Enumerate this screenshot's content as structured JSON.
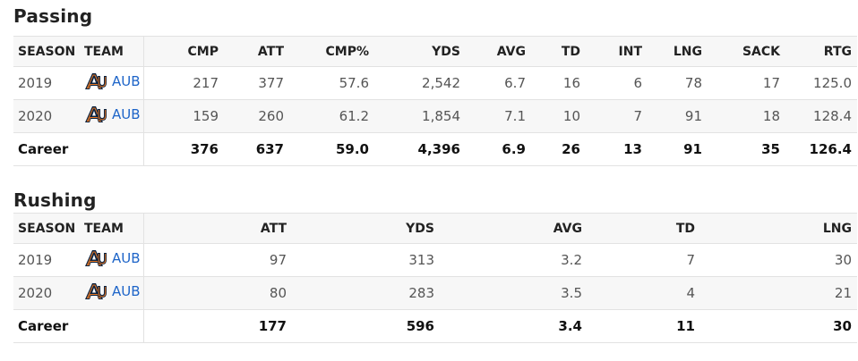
{
  "passing": {
    "title": "Passing",
    "columns": [
      "SEASON",
      "TEAM",
      "CMP",
      "ATT",
      "CMP%",
      "YDS",
      "AVG",
      "TD",
      "INT",
      "LNG",
      "SACK",
      "RTG"
    ],
    "rows": [
      {
        "season": "2019",
        "team": "AUB",
        "cmp": "217",
        "att": "377",
        "cmp_pct": "57.6",
        "yds": "2,542",
        "avg": "6.7",
        "td": "16",
        "int": "6",
        "lng": "78",
        "sack": "17",
        "rtg": "125.0"
      },
      {
        "season": "2020",
        "team": "AUB",
        "cmp": "159",
        "att": "260",
        "cmp_pct": "61.2",
        "yds": "1,854",
        "avg": "7.1",
        "td": "10",
        "int": "7",
        "lng": "91",
        "sack": "18",
        "rtg": "128.4"
      }
    ],
    "career": {
      "label": "Career",
      "cmp": "376",
      "att": "637",
      "cmp_pct": "59.0",
      "yds": "4,396",
      "avg": "6.9",
      "td": "26",
      "int": "13",
      "lng": "91",
      "sack": "35",
      "rtg": "126.4"
    }
  },
  "rushing": {
    "title": "Rushing",
    "columns": [
      "SEASON",
      "TEAM",
      "ATT",
      "YDS",
      "AVG",
      "TD",
      "LNG"
    ],
    "rows": [
      {
        "season": "2019",
        "team": "AUB",
        "att": "97",
        "yds": "313",
        "avg": "3.2",
        "td": "7",
        "lng": "30"
      },
      {
        "season": "2020",
        "team": "AUB",
        "att": "80",
        "yds": "283",
        "avg": "3.5",
        "td": "4",
        "lng": "21"
      }
    ],
    "career": {
      "label": "Career",
      "att": "177",
      "yds": "596",
      "avg": "3.4",
      "td": "11",
      "lng": "30"
    }
  },
  "colors": {
    "link": "#1d64c8",
    "logo_navy": "#0c2340",
    "logo_orange": "#e87722",
    "stripe": "#f7f7f7",
    "border": "#e2e2e2"
  },
  "icons": {
    "team_logo": "auburn-au-logo-icon"
  }
}
